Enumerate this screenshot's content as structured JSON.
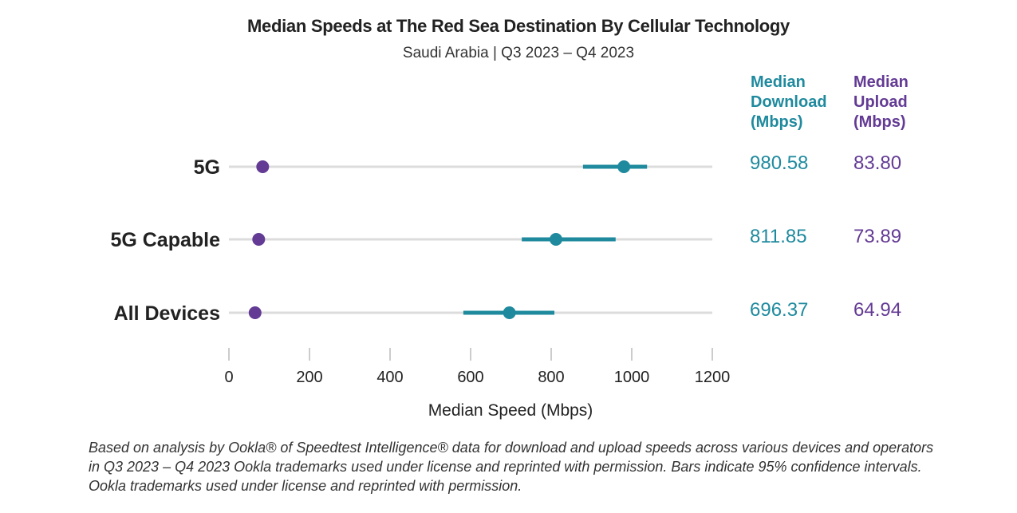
{
  "chart_data": {
    "type": "scatter",
    "subtype": "dot-plot-with-confidence-intervals",
    "title": "Median Speeds at The Red Sea Destination By Cellular Technology",
    "subtitle": "Saudi Arabia | Q3 2023 – Q4 2023",
    "xlabel": "Median Speed (Mbps)",
    "ylabel": "",
    "xlim": [
      0,
      1200
    ],
    "xticks": [
      0,
      200,
      400,
      600,
      800,
      1000,
      1200
    ],
    "xtick_labels": [
      "0",
      "200",
      "400",
      "600",
      "800",
      "1000",
      "1200"
    ],
    "categories": [
      "5G",
      "5G Capable",
      "All Devices"
    ],
    "series": [
      {
        "name": "Median Download (Mbps)",
        "color": "#1f8a9e",
        "values": [
          980.58,
          811.85,
          696.37
        ],
        "labels": [
          "980.58",
          "811.85",
          "696.37"
        ],
        "ci_low": [
          879,
          727,
          582
        ],
        "ci_high": [
          1038,
          960,
          808
        ]
      },
      {
        "name": "Median Upload (Mbps)",
        "color": "#633a94",
        "values": [
          83.8,
          73.89,
          64.94
        ],
        "labels": [
          "83.80",
          "73.89",
          "64.94"
        ]
      }
    ],
    "column_headers": {
      "download": [
        "Median",
        "Download",
        "(Mbps)"
      ],
      "upload": [
        "Median",
        "Upload",
        "(Mbps)"
      ]
    },
    "grid": false,
    "legend": "right-column-headers"
  },
  "footnote": {
    "lines": [
      "Based on analysis by Ookla® of Speedtest Intelligence® data for download and upload speeds across various devices and operators",
      "in Q3 2023 – Q4 2023 Ookla trademarks used under license and reprinted with permission. Bars indicate 95% confidence intervals.",
      "Ookla trademarks used under license and reprinted with permission."
    ]
  },
  "colors": {
    "download": "#1f8a9e",
    "upload": "#633a94",
    "track": "#dcdcdc",
    "axis_tick": "#bbbbbb"
  }
}
